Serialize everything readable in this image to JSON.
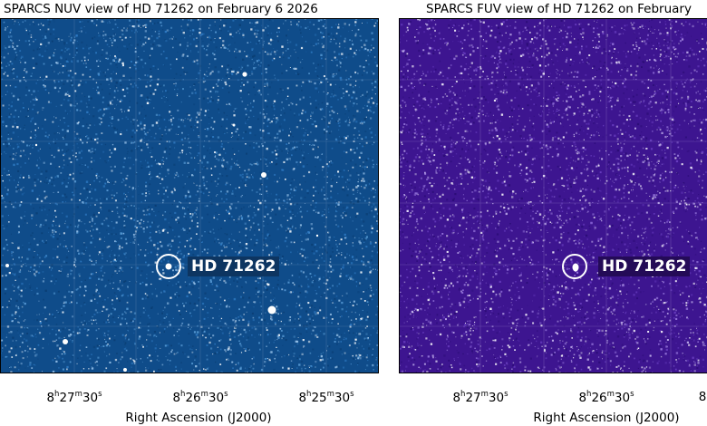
{
  "panels": [
    {
      "id": "nuv",
      "title": "SPARCS NUV view of HD 71262 on February 6 2026",
      "background_color": "#0f4c8a",
      "label_bg": "#0d3561",
      "target_label": "HD 71262",
      "x_ticks": [
        "8h27m30s",
        "8h26m30s",
        "8h25m30s"
      ],
      "xlabel": "Right Ascension (J2000)"
    },
    {
      "id": "fuv",
      "title": "SPARCS FUV view of HD 71262 on February",
      "background_color": "#3d1590",
      "label_bg": "#240b57",
      "target_label": "HD 71262",
      "x_ticks": [
        "8h27m30s",
        "8h26m30s",
        "8"
      ],
      "xlabel": "Right Ascension (J2000)"
    }
  ],
  "icons": {
    "target_marker": "circle-icon"
  }
}
